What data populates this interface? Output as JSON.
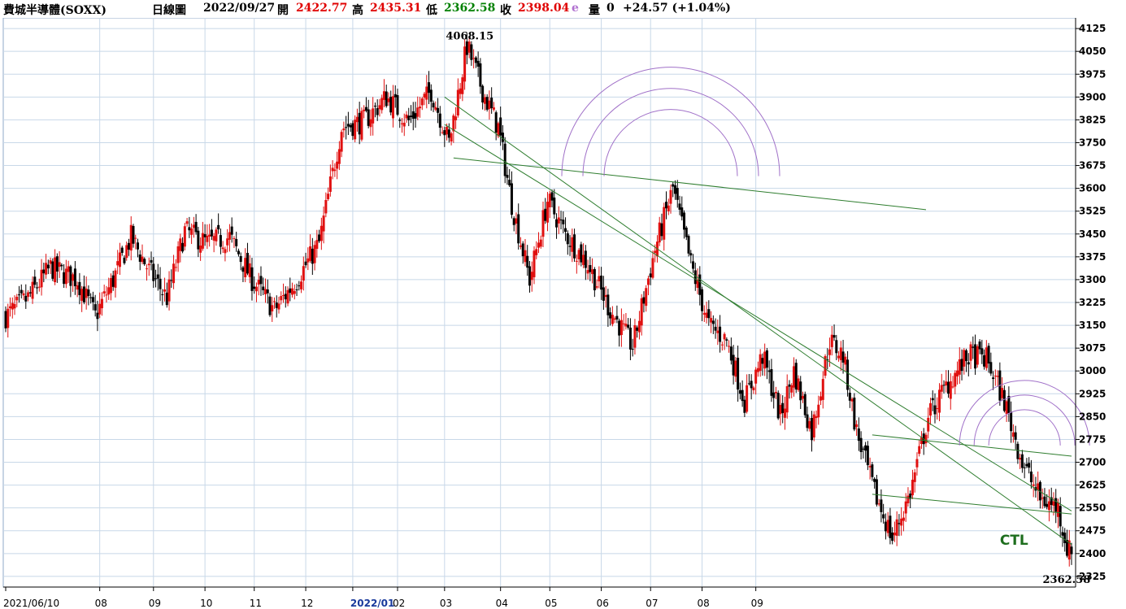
{
  "header": {
    "name": "費城半導體(SOXX)",
    "period": "日線圖",
    "date": "2022/09/27",
    "open_label": "開",
    "open": "2422.77",
    "high_label": "高",
    "high": "2435.31",
    "low_label": "低",
    "low": "2362.58",
    "close_label": "收",
    "close": "2398.04",
    "flag": "e",
    "volume_label": "量",
    "volume": "0",
    "change": "+24.57 (+1.04%)"
  },
  "colors": {
    "up": "#e01010",
    "down": "#000000",
    "trendline": "#2e7d2e",
    "arc": "#a070c8",
    "grid": "#c8d8e8"
  },
  "chart_data": {
    "type": "candlestick",
    "ylim": [
      2290,
      4160
    ],
    "yticks": [
      2325,
      2400,
      2475,
      2550,
      2625,
      2700,
      2775,
      2850,
      2925,
      3000,
      3075,
      3150,
      3225,
      3300,
      3375,
      3450,
      3525,
      3600,
      3675,
      3750,
      3825,
      3900,
      3975,
      4050,
      4125
    ],
    "xlabels": [
      "2021/06/10",
      "08",
      "09",
      "10",
      "11",
      "12",
      "2022/01",
      "02",
      "03",
      "04",
      "05",
      "06",
      "07",
      "08",
      "09"
    ],
    "anchors": [
      {
        "d": 0,
        "v": 3180
      },
      {
        "d": 10,
        "v": 3240
      },
      {
        "d": 20,
        "v": 3340
      },
      {
        "d": 32,
        "v": 3300
      },
      {
        "d": 40,
        "v": 3180
      },
      {
        "d": 48,
        "v": 3300
      },
      {
        "d": 56,
        "v": 3440
      },
      {
        "d": 64,
        "v": 3330
      },
      {
        "d": 72,
        "v": 3240
      },
      {
        "d": 80,
        "v": 3460
      },
      {
        "d": 90,
        "v": 3420
      },
      {
        "d": 100,
        "v": 3440
      },
      {
        "d": 110,
        "v": 3300
      },
      {
        "d": 120,
        "v": 3200
      },
      {
        "d": 130,
        "v": 3300
      },
      {
        "d": 140,
        "v": 3420
      },
      {
        "d": 150,
        "v": 3800
      },
      {
        "d": 160,
        "v": 3820
      },
      {
        "d": 170,
        "v": 3900
      },
      {
        "d": 180,
        "v": 3820
      },
      {
        "d": 190,
        "v": 3920
      },
      {
        "d": 198,
        "v": 3750
      },
      {
        "d": 206,
        "v": 4068
      },
      {
        "d": 214,
        "v": 3900
      },
      {
        "d": 220,
        "v": 3800
      },
      {
        "d": 226,
        "v": 3550
      },
      {
        "d": 234,
        "v": 3300
      },
      {
        "d": 242,
        "v": 3560
      },
      {
        "d": 250,
        "v": 3450
      },
      {
        "d": 260,
        "v": 3350
      },
      {
        "d": 270,
        "v": 3200
      },
      {
        "d": 280,
        "v": 3080
      },
      {
        "d": 290,
        "v": 3400
      },
      {
        "d": 298,
        "v": 3600
      },
      {
        "d": 306,
        "v": 3350
      },
      {
        "d": 314,
        "v": 3150
      },
      {
        "d": 322,
        "v": 3100
      },
      {
        "d": 330,
        "v": 2900
      },
      {
        "d": 338,
        "v": 3050
      },
      {
        "d": 346,
        "v": 2850
      },
      {
        "d": 352,
        "v": 3000
      },
      {
        "d": 360,
        "v": 2800
      },
      {
        "d": 368,
        "v": 3100
      },
      {
        "d": 374,
        "v": 3050
      },
      {
        "d": 380,
        "v": 2800
      },
      {
        "d": 388,
        "v": 2600
      },
      {
        "d": 396,
        "v": 2450
      },
      {
        "d": 404,
        "v": 2600
      },
      {
        "d": 412,
        "v": 2850
      },
      {
        "d": 420,
        "v": 2950
      },
      {
        "d": 430,
        "v": 3050
      },
      {
        "d": 438,
        "v": 3040
      },
      {
        "d": 446,
        "v": 2900
      },
      {
        "d": 454,
        "v": 2700
      },
      {
        "d": 462,
        "v": 2580
      },
      {
        "d": 470,
        "v": 2550
      },
      {
        "d": 474,
        "v": 2420
      },
      {
        "d": 476,
        "v": 2398
      }
    ],
    "annotations": [
      {
        "text": "4068.15",
        "type": "high"
      },
      {
        "text": "2362.58",
        "type": "low"
      },
      {
        "text": "CTL",
        "type": "label"
      }
    ]
  }
}
